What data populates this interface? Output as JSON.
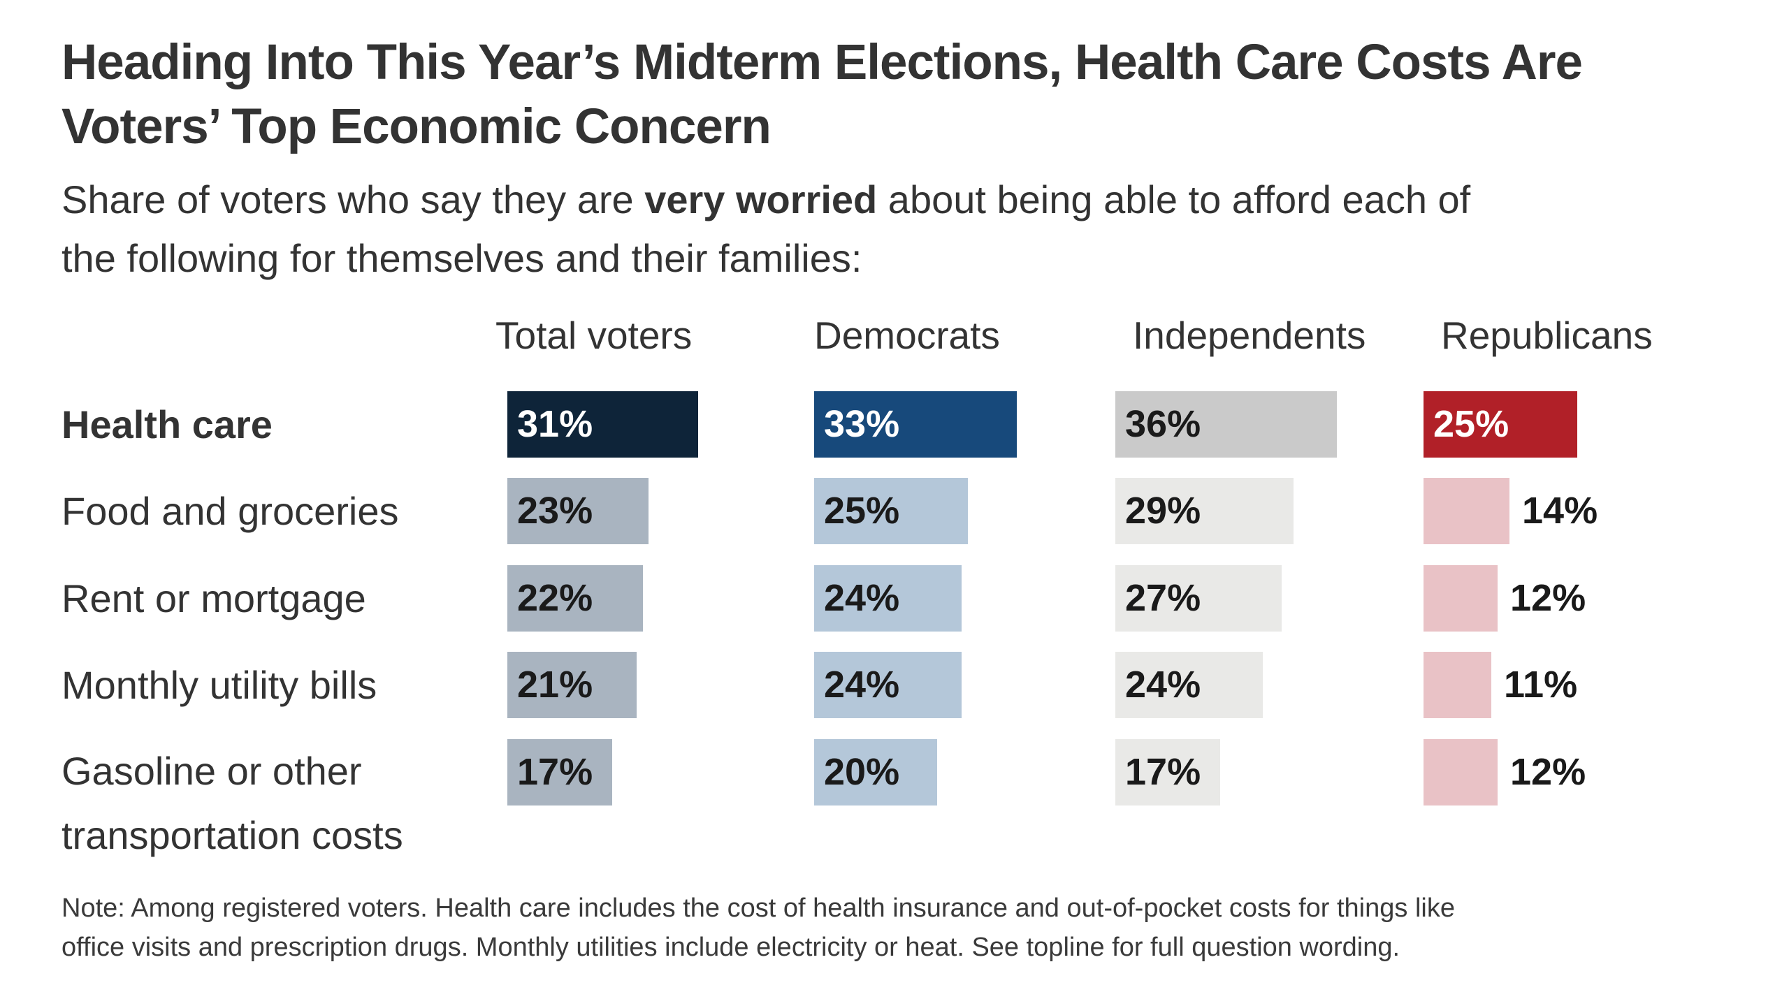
{
  "page": {
    "background": "#ffffff",
    "text_color": "#333333"
  },
  "chart_data": {
    "type": "bar",
    "title": "Heading Into This Year’s Midterm Elections, Health Care Costs Are Voters’ Top Economic Concern",
    "title_lines": [
      "Heading Into This Year’s Midterm Elections, Health Care Costs Are",
      "Voters’ Top Economic Concern"
    ],
    "subtitle": {
      "line1_pre": "Share of voters who say they are ",
      "line1_bold": "very worried",
      "line1_post": " about being able to afford each of",
      "line2": "the following for themselves and their families:"
    },
    "columns": [
      "Total voters",
      "Democrats",
      "Independents",
      "Republicans"
    ],
    "categories": [
      {
        "label": "Health care",
        "lines": [
          "Health care"
        ],
        "bold": true
      },
      {
        "label": "Food and groceries",
        "lines": [
          "Food and groceries"
        ],
        "bold": false
      },
      {
        "label": "Rent or mortgage",
        "lines": [
          "Rent or mortgage"
        ],
        "bold": false
      },
      {
        "label": "Monthly utility bills",
        "lines": [
          "Monthly utility bills"
        ],
        "bold": false
      },
      {
        "label": "Gasoline or other transportation costs",
        "lines": [
          "Gasoline or other",
          "transportation costs"
        ],
        "bold": false
      }
    ],
    "series": [
      {
        "name": "Total voters",
        "values": [
          31,
          23,
          22,
          21,
          17
        ],
        "color_strong": "#0e2439",
        "color_light": "#a9b4c0",
        "text_on_strong": "#ffffff"
      },
      {
        "name": "Democrats",
        "values": [
          33,
          25,
          24,
          24,
          20
        ],
        "color_strong": "#17497b",
        "color_light": "#b4c7d9",
        "text_on_strong": "#ffffff"
      },
      {
        "name": "Independents",
        "values": [
          36,
          29,
          27,
          24,
          17
        ],
        "color_strong": "#cacaca",
        "color_light": "#e9e9e7",
        "text_on_strong": "#1a1a1a"
      },
      {
        "name": "Republicans",
        "values": [
          25,
          14,
          12,
          11,
          12
        ],
        "color_strong": "#b12028",
        "color_light": "#e9c2c6",
        "text_on_strong": "#ffffff"
      }
    ],
    "value_suffix": "%",
    "value_text_on_light": "#1a1a1a",
    "xlim": [
      0,
      40
    ],
    "legend_position": "top-row-headers",
    "grid": false,
    "note": "Note: Among registered voters. Health care includes the cost of health insurance and out-of-pocket costs for things like office visits and prescription drugs. Monthly utilities include electricity or heat. See topline for full question wording.",
    "note_lines": [
      "Note: Among registered voters. Health care includes the cost of health insurance and out-of-pocket costs for things like",
      "office visits and prescription drugs. Monthly utilities include electricity or heat. See topline for full question wording."
    ]
  }
}
